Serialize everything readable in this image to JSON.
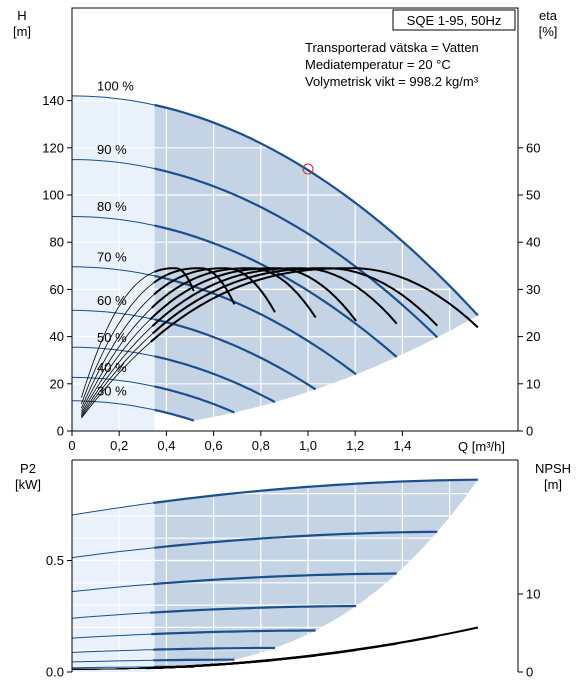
{
  "chart_data": [
    {
      "type": "line",
      "title": "SQE 1-95, 50Hz",
      "info_lines": [
        "Transporterad vätska = Vatten",
        "Mediatemperatur = 20 °C",
        "Volymetrisk vikt = 998.2 kg/m³"
      ],
      "xlabel": "Q [m³/h]",
      "x_ticks": [
        "0",
        "0,2",
        "0,4",
        "0,6",
        "0,8",
        "1,0",
        "1,2",
        "1,4"
      ],
      "xlim": [
        0,
        1.9
      ],
      "ylabel": "H\n[m]",
      "ylabel_parts": [
        "H",
        "[m]"
      ],
      "y_ticks": [
        "0",
        "20",
        "40",
        "60",
        "80",
        "100",
        "120",
        "140"
      ],
      "ylim": [
        0,
        140
      ],
      "y2label_parts": [
        "eta",
        "[%]"
      ],
      "y2_ticks": [
        "0",
        "10",
        "20",
        "30",
        "40",
        "50",
        "60"
      ],
      "y2lim": [
        0,
        70
      ],
      "speed_labels": [
        "100 %",
        "90 %",
        "80 %",
        "70 %",
        "60 %",
        "50 %",
        "40 %",
        "30 %"
      ],
      "speed_fractions": [
        1.0,
        0.9,
        0.8,
        0.7,
        0.6,
        0.5,
        0.4,
        0.3
      ],
      "max_head_curve": {
        "H0": 142,
        "Qmax": 1.72,
        "Hend": 49
      },
      "operating_range_qmin": 0.35,
      "duty_point": {
        "Q": 1.0,
        "H": 111
      },
      "efficiency_peak_percent": 34.5,
      "colors": {
        "curve": "#1a4f8c",
        "region": "#c5d4e4",
        "region_light": "#e9f2fb",
        "grid": "#ffffff",
        "efficiency": "#000000",
        "duty_point": "#e02020"
      }
    },
    {
      "type": "line",
      "xlim": [
        0,
        1.9
      ],
      "ylabel_parts": [
        "P2",
        "[kW]"
      ],
      "y_ticks": [
        "0.0",
        "0.5"
      ],
      "ylim": [
        0,
        0.95
      ],
      "y2label_parts": [
        "NPSH",
        "[m]"
      ],
      "y2_ticks": [
        "0",
        "10"
      ],
      "y2lim": [
        0,
        19
      ],
      "power_max_kw": 0.88,
      "npsh_end_m": 5.7,
      "colors": {
        "curve": "#1a4f8c",
        "region": "#c5d4e4",
        "npsh": "#000000"
      }
    }
  ]
}
